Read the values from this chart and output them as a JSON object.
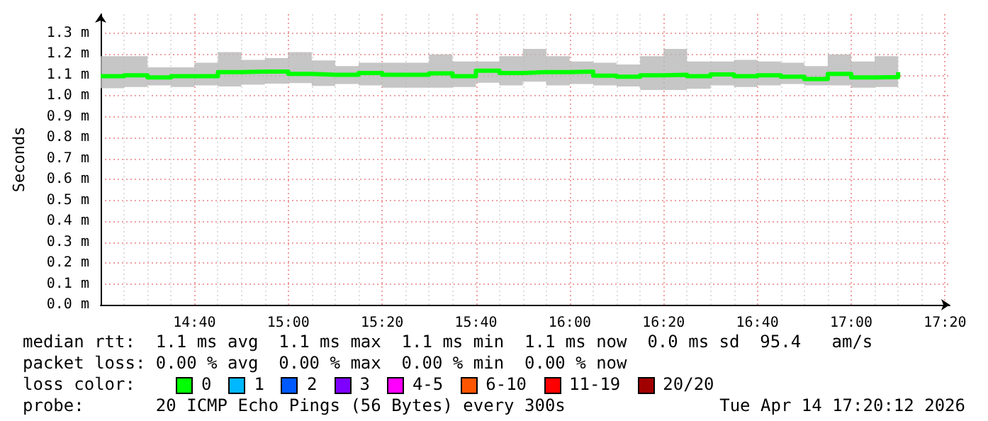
{
  "chart_data": {
    "type": "step",
    "ylabel": "Seconds",
    "x": [
      "2026-04-14T14:20",
      "2026-04-14T14:25",
      "2026-04-14T14:30",
      "2026-04-14T14:35",
      "2026-04-14T14:40",
      "2026-04-14T14:45",
      "2026-04-14T14:50",
      "2026-04-14T14:55",
      "2026-04-14T15:00",
      "2026-04-14T15:05",
      "2026-04-14T15:10",
      "2026-04-14T15:15",
      "2026-04-14T15:20",
      "2026-04-14T15:25",
      "2026-04-14T15:30",
      "2026-04-14T15:35",
      "2026-04-14T15:40",
      "2026-04-14T15:45",
      "2026-04-14T15:50",
      "2026-04-14T15:55",
      "2026-04-14T16:00",
      "2026-04-14T16:05",
      "2026-04-14T16:10",
      "2026-04-14T16:15",
      "2026-04-14T16:20",
      "2026-04-14T16:25",
      "2026-04-14T16:30",
      "2026-04-14T16:35",
      "2026-04-14T16:40",
      "2026-04-14T16:45",
      "2026-04-14T16:50",
      "2026-04-14T16:55",
      "2026-04-14T17:00",
      "2026-04-14T17:05",
      "2026-04-14T17:10"
    ],
    "series": [
      {
        "color": "#00ff00",
        "values": [
          1.093,
          1.098,
          1.087,
          1.093,
          1.093,
          1.113,
          1.115,
          1.115,
          1.104,
          1.1,
          1.1,
          1.109,
          1.1,
          1.1,
          1.107,
          1.093,
          1.12,
          1.109,
          1.113,
          1.113,
          1.115,
          1.096,
          1.091,
          1.098,
          1.1,
          1.093,
          1.102,
          1.093,
          1.098,
          1.091,
          1.08,
          1.104,
          1.087,
          1.089,
          1.113
        ],
        "lower": [
          1.036,
          1.042,
          1.049,
          1.042,
          1.049,
          1.044,
          1.053,
          1.058,
          1.06,
          1.047,
          1.056,
          1.049,
          1.038,
          1.038,
          1.038,
          1.042,
          1.062,
          1.049,
          1.067,
          1.049,
          1.056,
          1.049,
          1.044,
          1.027,
          1.027,
          1.033,
          1.049,
          1.042,
          1.049,
          1.056,
          1.049,
          1.049,
          1.038,
          1.042,
          1.033
        ],
        "upper": [
          1.189,
          1.189,
          1.136,
          1.136,
          1.158,
          1.209,
          1.171,
          1.18,
          1.209,
          1.169,
          1.142,
          1.158,
          1.158,
          1.158,
          1.198,
          1.164,
          1.164,
          1.189,
          1.224,
          1.189,
          1.164,
          1.158,
          1.149,
          1.189,
          1.224,
          1.164,
          1.164,
          1.171,
          1.164,
          1.158,
          1.142,
          1.198,
          1.164,
          1.189,
          1.158
        ]
      }
    ],
    "xlim": [
      "2026-04-14T14:20",
      "2026-04-14T17:21"
    ],
    "xticks": [
      {
        "value": "2026-04-14T14:25",
        "label": null
      },
      {
        "value": "2026-04-14T14:30",
        "label": null
      },
      {
        "value": "2026-04-14T14:35",
        "label": null
      },
      {
        "value": "2026-04-14T14:40",
        "label": "14:40"
      },
      {
        "value": "2026-04-14T14:45",
        "label": null
      },
      {
        "value": "2026-04-14T14:50",
        "label": null
      },
      {
        "value": "2026-04-14T14:55",
        "label": null
      },
      {
        "value": "2026-04-14T15:00",
        "label": "15:00"
      },
      {
        "value": "2026-04-14T15:05",
        "label": null
      },
      {
        "value": "2026-04-14T15:10",
        "label": null
      },
      {
        "value": "2026-04-14T15:15",
        "label": null
      },
      {
        "value": "2026-04-14T15:20",
        "label": "15:20"
      },
      {
        "value": "2026-04-14T15:25",
        "label": null
      },
      {
        "value": "2026-04-14T15:30",
        "label": null
      },
      {
        "value": "2026-04-14T15:35",
        "label": null
      },
      {
        "value": "2026-04-14T15:40",
        "label": "15:40"
      },
      {
        "value": "2026-04-14T15:45",
        "label": null
      },
      {
        "value": "2026-04-14T15:50",
        "label": null
      },
      {
        "value": "2026-04-14T15:55",
        "label": null
      },
      {
        "value": "2026-04-14T16:00",
        "label": "16:00"
      },
      {
        "value": "2026-04-14T16:05",
        "label": null
      },
      {
        "value": "2026-04-14T16:10",
        "label": null
      },
      {
        "value": "2026-04-14T16:15",
        "label": null
      },
      {
        "value": "2026-04-14T16:20",
        "label": "16:20"
      },
      {
        "value": "2026-04-14T16:25",
        "label": null
      },
      {
        "value": "2026-04-14T16:30",
        "label": null
      },
      {
        "value": "2026-04-14T16:35",
        "label": null
      },
      {
        "value": "2026-04-14T16:40",
        "label": "16:40"
      },
      {
        "value": "2026-04-14T16:45",
        "label": null
      },
      {
        "value": "2026-04-14T16:50",
        "label": null
      },
      {
        "value": "2026-04-14T16:55",
        "label": null
      },
      {
        "value": "2026-04-14T17:00",
        "label": "17:00"
      },
      {
        "value": "2026-04-14T17:05",
        "label": null
      },
      {
        "value": "2026-04-14T17:10",
        "label": null
      },
      {
        "value": "2026-04-14T17:15",
        "label": null
      },
      {
        "value": "2026-04-14T17:20",
        "label": "17:20"
      }
    ],
    "ylim": [
      0,
      1.39
    ],
    "yticks": [
      {
        "value": 0,
        "label": "0.0 m"
      },
      {
        "value": 0.1,
        "label": "0.1 m"
      },
      {
        "value": 0.2,
        "label": "0.2 m"
      },
      {
        "value": 0.3,
        "label": "0.3 m"
      },
      {
        "value": 0.4,
        "label": "0.4 m"
      },
      {
        "value": 0.5,
        "label": "0.5 m"
      },
      {
        "value": 0.6,
        "label": "0.6 m"
      },
      {
        "value": 0.7,
        "label": "0.7 m"
      },
      {
        "value": 0.8,
        "label": "0.8 m"
      },
      {
        "value": 0.9,
        "label": "0.9 m"
      },
      {
        "value": 1.0,
        "label": "1.0 m"
      },
      {
        "value": 1.1,
        "label": "1.1 m"
      },
      {
        "value": 1.2,
        "label": "1.2 m"
      },
      {
        "value": 1.3,
        "label": "1.3 m"
      }
    ],
    "grid": true,
    "annotations": [
      "median rtt:  1.1 ms avg  1.1 ms max  1.1 ms min  1.1 ms now  0.0 ms sd  95.4   am/s",
      "packet loss: 0.00 % avg  0.00 % max  0.00 % min  0.00 % now",
      "loss color:",
      "0",
      "1",
      "2",
      "3",
      "4-5",
      "6-10",
      "11-19",
      "20/20",
      "probe:       20 ICMP Echo Pings (56 Bytes) every 300s",
      "Tue Apr 14 17:20:12 2026"
    ]
  }
}
